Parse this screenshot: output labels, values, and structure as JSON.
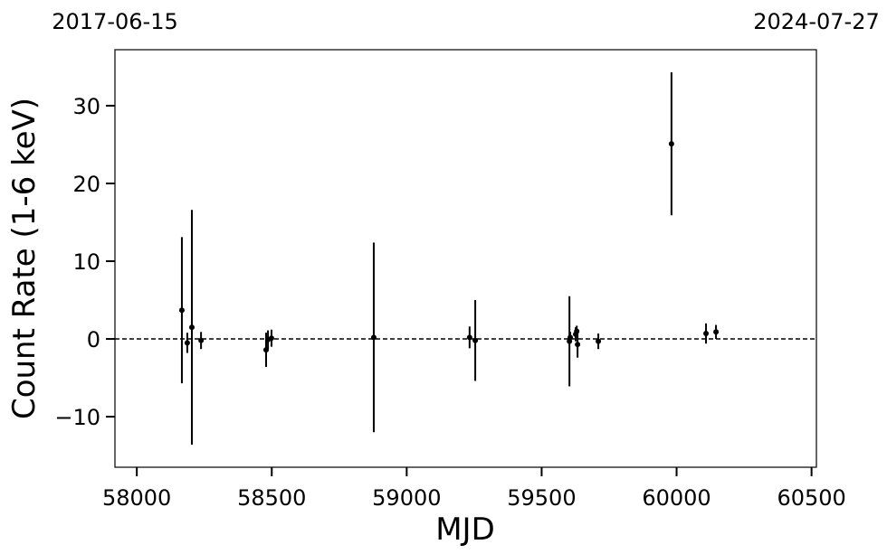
{
  "chart_data": {
    "type": "errorbar",
    "x_label": "MJD",
    "y_label": "Count Rate (1-6 keV)",
    "x": [
      58167,
      58187,
      58204,
      58238,
      58479,
      58486,
      58499,
      58878,
      59233,
      59254,
      59603,
      59606,
      59626,
      59630,
      59633,
      59710,
      59981,
      60109,
      60146
    ],
    "values": [
      3.7,
      -0.5,
      1.5,
      -0.2,
      -1.4,
      -0.1,
      0.1,
      0.2,
      0.2,
      -0.2,
      -0.3,
      0.2,
      0.6,
      1.0,
      -0.7,
      -0.3,
      25.1,
      0.7,
      0.9
    ],
    "errors": [
      9.4,
      1.3,
      15.1,
      1.1,
      2.2,
      1.2,
      1.1,
      12.2,
      1.4,
      5.2,
      5.8,
      0.7,
      0.9,
      0.7,
      1.7,
      1.0,
      9.2,
      1.3,
      0.9
    ],
    "color": "#000000",
    "xlim": [
      57919,
      60518
    ],
    "ylim": [
      -16.5,
      37.2
    ],
    "xticks": [
      58000,
      58500,
      59000,
      59500,
      60000,
      60500
    ],
    "yticks": [
      {
        "value": -10,
        "label": "−10"
      },
      0,
      10,
      20,
      30
    ],
    "x2ticks": [
      {
        "value": 57919,
        "label": "2017-06-15"
      },
      {
        "value": 60518,
        "label": "2024-07-27"
      }
    ],
    "reference_line": 0
  }
}
